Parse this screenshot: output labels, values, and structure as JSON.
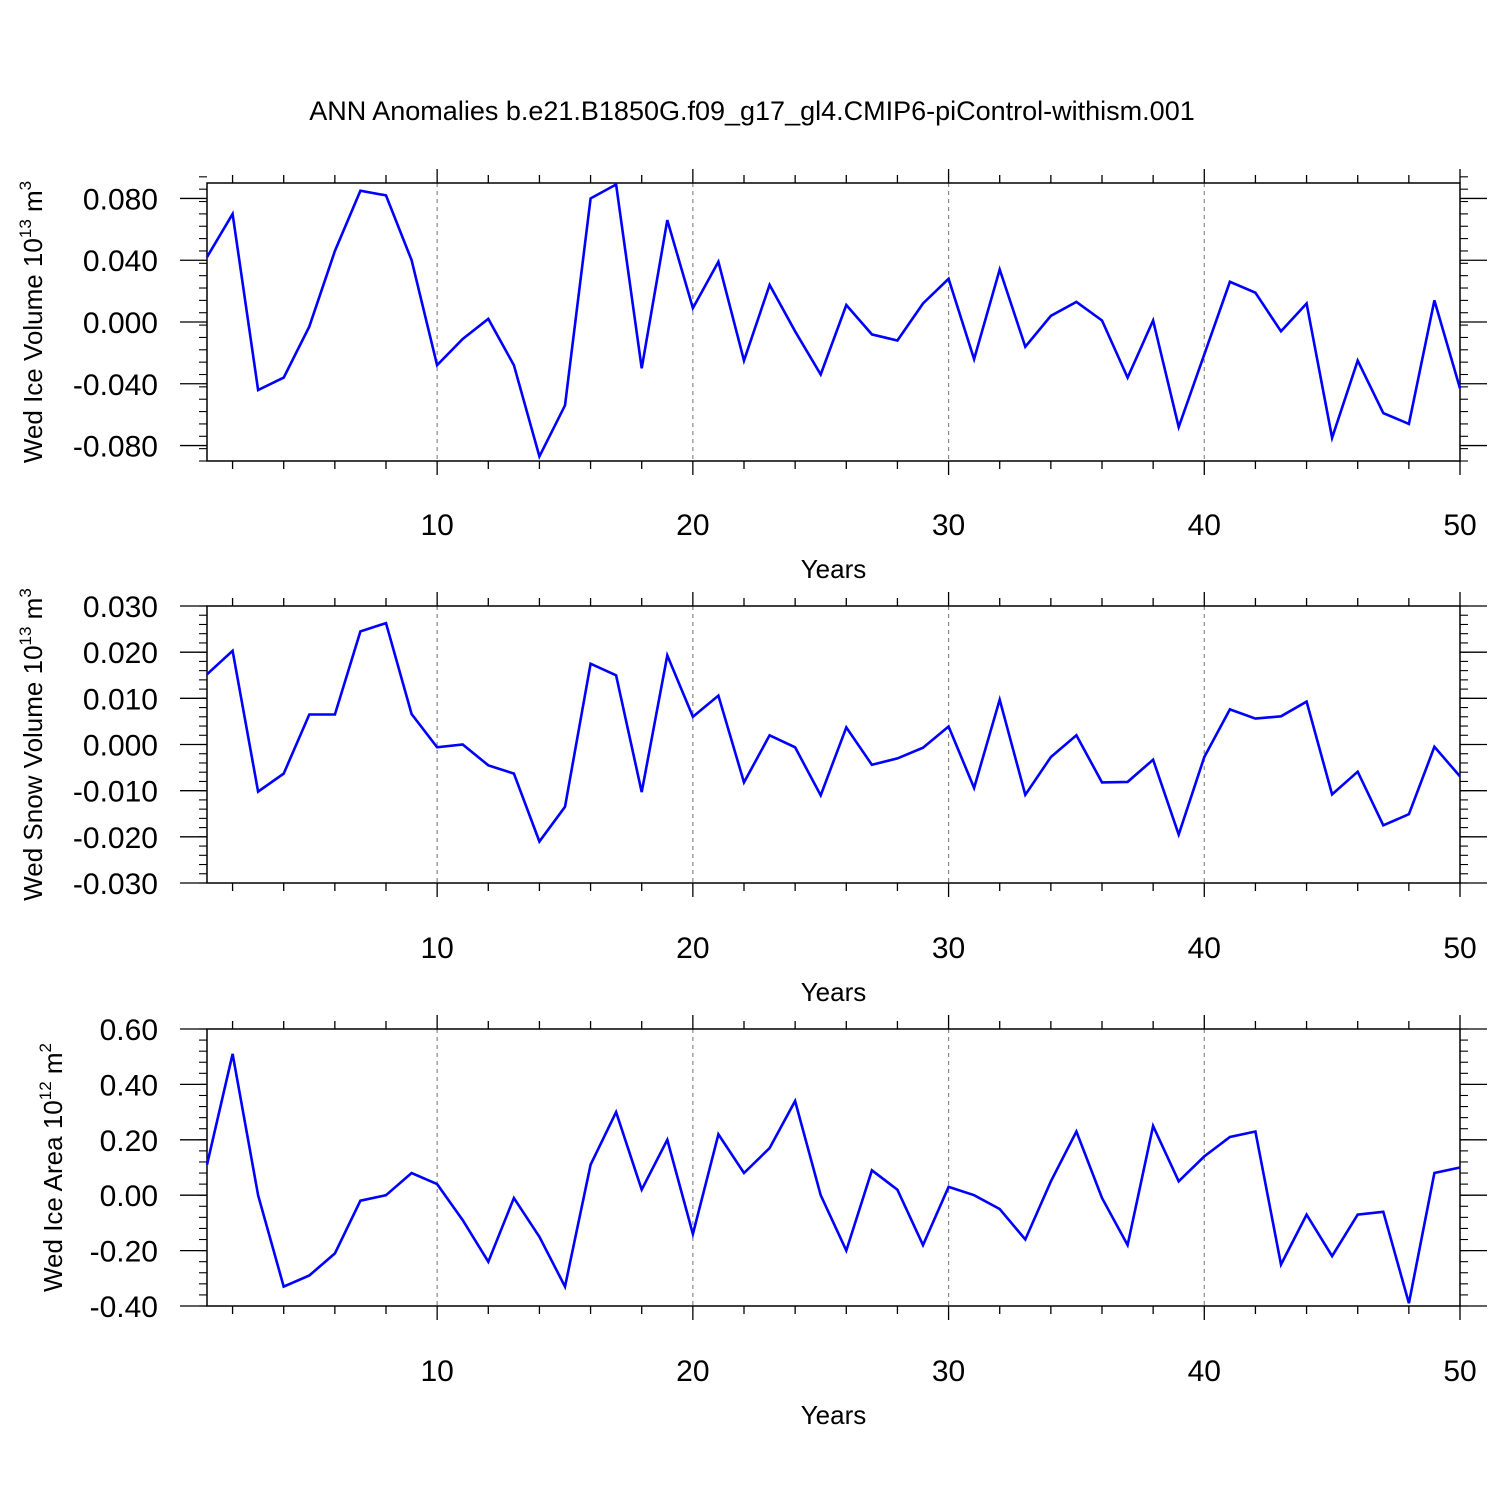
{
  "title": "ANN Anomalies b.e21.B1850G.f09_g17_gl4.CMIP6-piControl-withism.001",
  "line_color": "#0000ff",
  "chart_data": [
    {
      "type": "line",
      "ylabel_main": "Wed Ice Volume 10",
      "ylabel_exp": "13",
      "ylabel_unit": " m",
      "ylabel_unit_exp": "3",
      "xlabel": "Years",
      "xlim": [
        1,
        50
      ],
      "ylim": [
        -0.09,
        0.09
      ],
      "xticks": [
        10,
        20,
        30,
        40,
        50
      ],
      "xtick_labels": [
        "10",
        "20",
        "30",
        "40",
        "50"
      ],
      "yticks": [
        0.08,
        0.04,
        0.0,
        -0.04,
        -0.08
      ],
      "ytick_labels": [
        "0.080",
        "0.040",
        "0.000",
        "-0.040",
        "-0.080"
      ],
      "grid_x": [
        10,
        20,
        30,
        40
      ],
      "series": [
        {
          "name": "Wed Ice Volume",
          "x": [
            1,
            2,
            3,
            4,
            5,
            6,
            7,
            8,
            9,
            10,
            11,
            12,
            13,
            14,
            15,
            16,
            17,
            18,
            19,
            20,
            21,
            22,
            23,
            24,
            25,
            26,
            27,
            28,
            29,
            30,
            31,
            32,
            33,
            34,
            35,
            36,
            37,
            38,
            39,
            40,
            41,
            42,
            43,
            44,
            45,
            46,
            47,
            48,
            49,
            50
          ],
          "values": [
            0.042,
            0.07,
            -0.044,
            -0.036,
            -0.003,
            0.046,
            0.085,
            0.082,
            0.04,
            -0.028,
            -0.011,
            0.002,
            -0.028,
            -0.087,
            -0.054,
            0.08,
            0.089,
            -0.03,
            0.066,
            0.009,
            0.039,
            -0.025,
            0.024,
            -0.006,
            -0.034,
            0.011,
            -0.008,
            -0.012,
            0.012,
            0.028,
            -0.024,
            0.034,
            -0.016,
            0.004,
            0.013,
            0.001,
            -0.036,
            0.001,
            -0.068,
            -0.021,
            0.026,
            0.019,
            -0.006,
            0.012,
            -0.075,
            -0.025,
            -0.059,
            -0.066,
            0.014,
            -0.043
          ]
        }
      ]
    },
    {
      "type": "line",
      "ylabel_main": "Wed Snow Volume 10",
      "ylabel_exp": "13",
      "ylabel_unit": " m",
      "ylabel_unit_exp": "3",
      "xlabel": "Years",
      "xlim": [
        1,
        50
      ],
      "ylim": [
        -0.03,
        0.03
      ],
      "xticks": [
        10,
        20,
        30,
        40,
        50
      ],
      "xtick_labels": [
        "10",
        "20",
        "30",
        "40",
        "50"
      ],
      "yticks": [
        0.03,
        0.02,
        0.01,
        0.0,
        -0.01,
        -0.02,
        -0.03
      ],
      "ytick_labels": [
        "0.030",
        "0.020",
        "0.010",
        "0.000",
        "-0.010",
        "-0.020",
        "-0.030"
      ],
      "grid_x": [
        10,
        20,
        30,
        40
      ],
      "series": [
        {
          "name": "Wed Snow Volume",
          "x": [
            1,
            2,
            3,
            4,
            5,
            6,
            7,
            8,
            9,
            10,
            11,
            12,
            13,
            14,
            15,
            16,
            17,
            18,
            19,
            20,
            21,
            22,
            23,
            24,
            25,
            26,
            27,
            28,
            29,
            30,
            31,
            32,
            33,
            34,
            35,
            36,
            37,
            38,
            39,
            40,
            41,
            42,
            43,
            44,
            45,
            46,
            47,
            48,
            49,
            50
          ],
          "values": [
            0.0152,
            0.0203,
            -0.0102,
            -0.0063,
            0.0065,
            0.0065,
            0.0245,
            0.0263,
            0.0066,
            -0.0006,
            0.0,
            -0.0045,
            -0.0063,
            -0.021,
            -0.0135,
            0.0175,
            0.015,
            -0.0103,
            0.0193,
            0.006,
            0.0106,
            -0.0082,
            0.002,
            -0.0006,
            -0.011,
            0.0037,
            -0.0044,
            -0.003,
            -0.0007,
            0.0039,
            -0.0094,
            0.0097,
            -0.0109,
            -0.0027,
            0.002,
            -0.0082,
            -0.0081,
            -0.0033,
            -0.0195,
            -0.0027,
            0.0076,
            0.0056,
            0.0061,
            0.0093,
            -0.0108,
            -0.0059,
            -0.0175,
            -0.0151,
            -0.0005,
            -0.0069
          ]
        }
      ]
    },
    {
      "type": "line",
      "ylabel_main": "Wed Ice Area 10",
      "ylabel_exp": "12",
      "ylabel_unit": " m",
      "ylabel_unit_exp": "2",
      "xlabel": "Years",
      "xlim": [
        1,
        50
      ],
      "ylim": [
        -0.4,
        0.6
      ],
      "xticks": [
        10,
        20,
        30,
        40,
        50
      ],
      "xtick_labels": [
        "10",
        "20",
        "30",
        "40",
        "50"
      ],
      "yticks": [
        0.6,
        0.4,
        0.2,
        0.0,
        -0.2,
        -0.4
      ],
      "ytick_labels": [
        "0.60",
        "0.40",
        "0.20",
        "0.00",
        "-0.20",
        "-0.40"
      ],
      "grid_x": [
        10,
        20,
        30,
        40
      ],
      "series": [
        {
          "name": "Wed Ice Area",
          "x": [
            1,
            2,
            3,
            4,
            5,
            6,
            7,
            8,
            9,
            10,
            11,
            12,
            13,
            14,
            15,
            16,
            17,
            18,
            19,
            20,
            21,
            22,
            23,
            24,
            25,
            26,
            27,
            28,
            29,
            30,
            31,
            32,
            33,
            34,
            35,
            36,
            37,
            38,
            39,
            40,
            41,
            42,
            43,
            44,
            45,
            46,
            47,
            48,
            49,
            50
          ],
          "values": [
            0.11,
            0.51,
            0.0,
            -0.33,
            -0.29,
            -0.21,
            -0.02,
            0.0,
            0.08,
            0.04,
            -0.09,
            -0.24,
            -0.01,
            -0.15,
            -0.33,
            0.11,
            0.3,
            0.02,
            0.2,
            -0.14,
            0.22,
            0.08,
            0.17,
            0.34,
            0.0,
            -0.2,
            0.09,
            0.02,
            -0.18,
            0.03,
            0.0,
            -0.05,
            -0.16,
            0.05,
            0.23,
            -0.01,
            -0.18,
            0.25,
            0.05,
            0.14,
            0.21,
            0.23,
            -0.25,
            -0.07,
            -0.22,
            -0.07,
            -0.06,
            -0.39,
            0.08,
            0.1
          ]
        }
      ]
    }
  ]
}
